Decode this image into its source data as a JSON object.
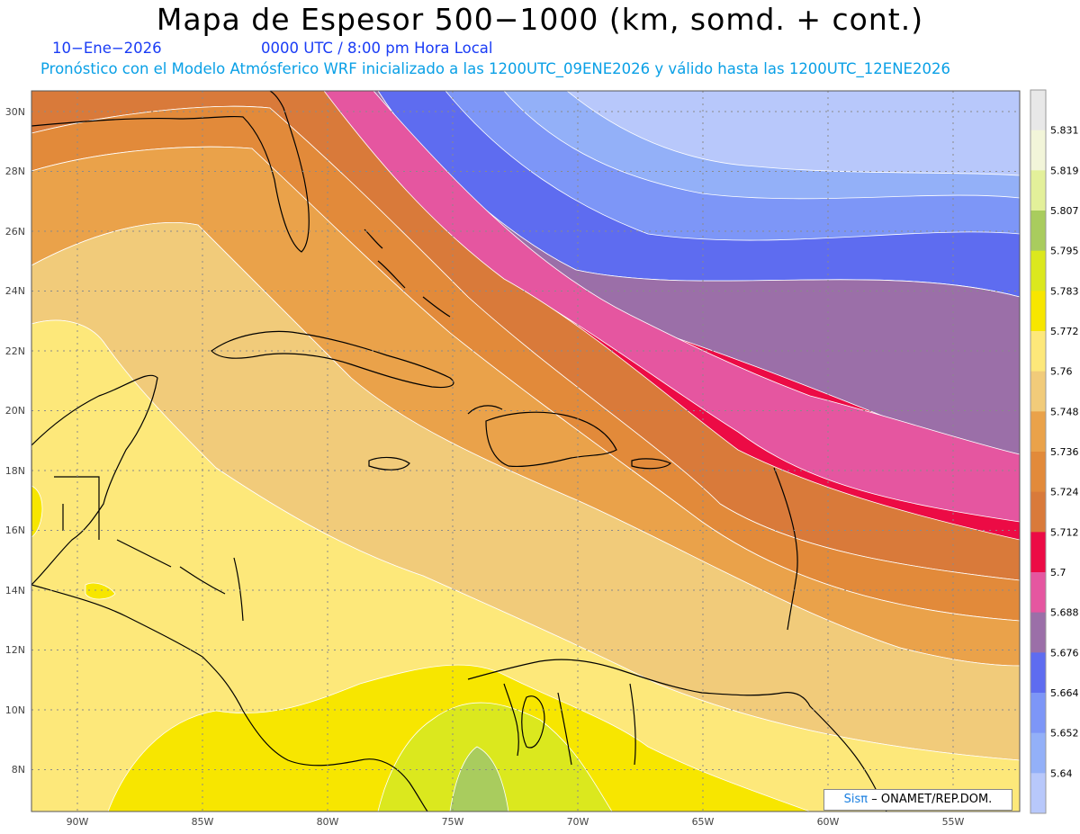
{
  "header": {
    "title": "Mapa de Espesor 500−1000 (km, somd. + cont.)",
    "date": "10−Ene−2026",
    "time": "0000 UTC / 8:00 pm Hora Local",
    "forecast": "Pronóstico con el Modelo Atmósferico WRF inicializado a las 1200UTC_09ENE2026 y válido hasta las  1200UTC_12ENE2026"
  },
  "axes": {
    "lat_labels": [
      "30N",
      "28N",
      "26N",
      "24N",
      "22N",
      "20N",
      "18N",
      "16N",
      "14N",
      "12N",
      "10N",
      "8N"
    ],
    "lon_labels": [
      "90W",
      "85W",
      "80W",
      "75W",
      "70W",
      "65W",
      "60W",
      "55W"
    ]
  },
  "colorbar": {
    "levels": [
      "5.831",
      "5.819",
      "5.807",
      "5.795",
      "5.783",
      "5.772",
      "5.76",
      "5.748",
      "5.736",
      "5.724",
      "5.712",
      "5.7",
      "5.688",
      "5.676",
      "5.664",
      "5.652",
      "5.64"
    ],
    "colors": [
      "#e8e8e8",
      "#f2f5d9",
      "#e3f09a",
      "#a9cc5e",
      "#dbe81e",
      "#f7e600",
      "#fde87a",
      "#f1cb7a",
      "#eaa24a",
      "#e28a3a",
      "#d97a3a",
      "#ec0b45",
      "#e556a0",
      "#9b6fa8",
      "#5e6cf0",
      "#7d96f7",
      "#93b0f8",
      "#b8c8fb"
    ]
  },
  "credit": {
    "brand": "Sisπ",
    "org": "– ONAMET/REP.DOM."
  }
}
